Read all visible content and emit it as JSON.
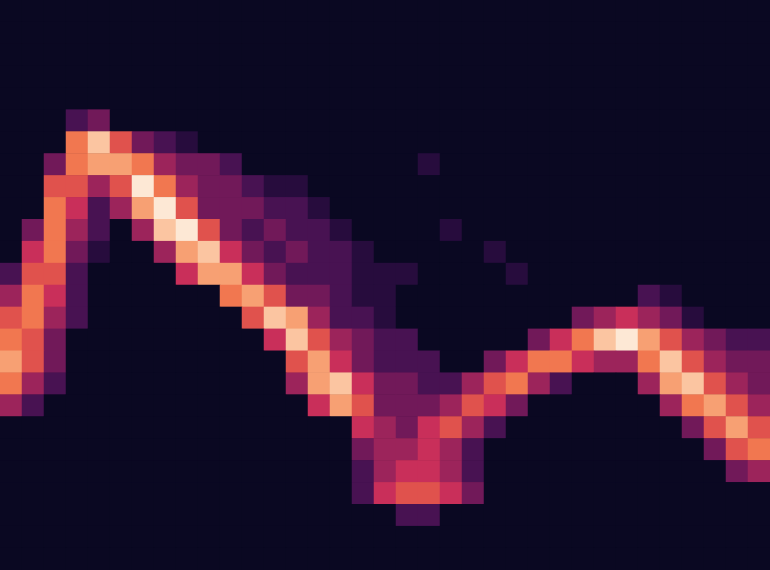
{
  "chart_data": {
    "type": "heatmap",
    "tick_labels": false,
    "zlim": [
      0,
      10
    ],
    "cells": [
      [
        0,
        0,
        0,
        0,
        0,
        0,
        0,
        0,
        0,
        0,
        0,
        0,
        0,
        0,
        0,
        0,
        0,
        0,
        0,
        0,
        0,
        0,
        0,
        0,
        0,
        0,
        0,
        0,
        0,
        0,
        0,
        0,
        0,
        0,
        0
      ],
      [
        0,
        0,
        0,
        0,
        0,
        0,
        0,
        0,
        0,
        0,
        0,
        0,
        0,
        0,
        0,
        0,
        0,
        0,
        0,
        0,
        0,
        0,
        0,
        0,
        0,
        0,
        0,
        0,
        0,
        0,
        0,
        0,
        0,
        0,
        0
      ],
      [
        0,
        0,
        0,
        0,
        0,
        0,
        0,
        0,
        0,
        0,
        0,
        0,
        0,
        0,
        0,
        0,
        0,
        0,
        0,
        0,
        0,
        0,
        0,
        0,
        0,
        0,
        0,
        0,
        0,
        0,
        0,
        0,
        0,
        0,
        0
      ],
      [
        0,
        0,
        0,
        0,
        0,
        0,
        0,
        0,
        0,
        0,
        0,
        0,
        0,
        0,
        0,
        0,
        0,
        0,
        0,
        0,
        0,
        0,
        0,
        0,
        0,
        0,
        0,
        0,
        0,
        0,
        0,
        0,
        0,
        0,
        0
      ],
      [
        0,
        0,
        0,
        0,
        0,
        0,
        0,
        0,
        0,
        0,
        0,
        0,
        0,
        0,
        0,
        0,
        0,
        0,
        0,
        0,
        0,
        0,
        0,
        0,
        0,
        0,
        0,
        0,
        0,
        0,
        0,
        0,
        0,
        0,
        0
      ],
      [
        0,
        0,
        0,
        2,
        3,
        0,
        0,
        0,
        0,
        0,
        0,
        0,
        0,
        0,
        0,
        0,
        0,
        0,
        0,
        0,
        0,
        0,
        0,
        0,
        0,
        0,
        0,
        0,
        0,
        0,
        0,
        0,
        0,
        0,
        0
      ],
      [
        0,
        0,
        0,
        7,
        9,
        6,
        3,
        2,
        1,
        0,
        0,
        0,
        0,
        0,
        0,
        0,
        0,
        0,
        0,
        0,
        0,
        0,
        0,
        0,
        0,
        0,
        0,
        0,
        0,
        0,
        0,
        0,
        0,
        0,
        0
      ],
      [
        0,
        0,
        3,
        7,
        8,
        8,
        7,
        4,
        3,
        3,
        2,
        0,
        0,
        0,
        0,
        0,
        0,
        0,
        0,
        1,
        0,
        0,
        0,
        0,
        0,
        0,
        0,
        0,
        0,
        0,
        0,
        0,
        0,
        0,
        0
      ],
      [
        0,
        0,
        6,
        6,
        4,
        6,
        10,
        7,
        4,
        3,
        3,
        2,
        1,
        1,
        0,
        0,
        0,
        0,
        0,
        0,
        0,
        0,
        0,
        0,
        0,
        0,
        0,
        0,
        0,
        0,
        0,
        0,
        0,
        0,
        0
      ],
      [
        0,
        0,
        7,
        5,
        2,
        4,
        8,
        10,
        6,
        3,
        3,
        3,
        2,
        2,
        1,
        0,
        0,
        0,
        0,
        0,
        0,
        0,
        0,
        0,
        0,
        0,
        0,
        0,
        0,
        0,
        0,
        0,
        0,
        0,
        0
      ],
      [
        0,
        3,
        7,
        4,
        2,
        0,
        4,
        9,
        10,
        6,
        3,
        2,
        3,
        2,
        2,
        1,
        0,
        0,
        0,
        0,
        1,
        0,
        0,
        0,
        0,
        0,
        0,
        0,
        0,
        0,
        0,
        0,
        0,
        0,
        0
      ],
      [
        0,
        5,
        7,
        3,
        1,
        0,
        0,
        4,
        8,
        9,
        5,
        3,
        2,
        3,
        2,
        2,
        1,
        0,
        0,
        0,
        0,
        0,
        1,
        0,
        0,
        0,
        0,
        0,
        0,
        0,
        0,
        0,
        0,
        0,
        0
      ],
      [
        2,
        6,
        6,
        2,
        0,
        0,
        0,
        0,
        5,
        8,
        8,
        5,
        3,
        2,
        2,
        2,
        1,
        1,
        1,
        0,
        0,
        0,
        0,
        1,
        0,
        0,
        0,
        0,
        0,
        0,
        0,
        0,
        0,
        0,
        0
      ],
      [
        4,
        7,
        5,
        2,
        0,
        0,
        0,
        0,
        0,
        0,
        7,
        8,
        6,
        3,
        3,
        2,
        1,
        1,
        0,
        0,
        0,
        0,
        0,
        0,
        0,
        0,
        0,
        0,
        0,
        2,
        1,
        0,
        0,
        0,
        0
      ],
      [
        6,
        7,
        4,
        2,
        0,
        0,
        0,
        0,
        0,
        0,
        0,
        6,
        9,
        8,
        4,
        2,
        2,
        1,
        0,
        0,
        0,
        0,
        0,
        0,
        0,
        0,
        3,
        4,
        5,
        4,
        3,
        1,
        0,
        0,
        0
      ],
      [
        7,
        6,
        3,
        0,
        0,
        0,
        0,
        0,
        0,
        0,
        0,
        0,
        5,
        9,
        6,
        4,
        3,
        2,
        2,
        0,
        0,
        0,
        0,
        0,
        3,
        5,
        7,
        9,
        10,
        8,
        6,
        4,
        3,
        2,
        2
      ],
      [
        8,
        6,
        3,
        0,
        0,
        0,
        0,
        0,
        0,
        0,
        0,
        0,
        0,
        6,
        8,
        5,
        3,
        2,
        2,
        2,
        0,
        0,
        3,
        5,
        7,
        7,
        5,
        4,
        4,
        7,
        9,
        6,
        4,
        3,
        3
      ],
      [
        7,
        4,
        2,
        0,
        0,
        0,
        0,
        0,
        0,
        0,
        0,
        0,
        0,
        4,
        8,
        9,
        5,
        3,
        3,
        2,
        2,
        4,
        6,
        7,
        4,
        2,
        0,
        0,
        0,
        4,
        8,
        9,
        6,
        4,
        3
      ],
      [
        4,
        2,
        0,
        0,
        0,
        0,
        0,
        0,
        0,
        0,
        0,
        0,
        0,
        0,
        5,
        8,
        6,
        3,
        3,
        3,
        4,
        6,
        5,
        3,
        0,
        0,
        0,
        0,
        0,
        0,
        4,
        7,
        8,
        6,
        4
      ],
      [
        0,
        0,
        0,
        0,
        0,
        0,
        0,
        0,
        0,
        0,
        0,
        0,
        0,
        0,
        0,
        0,
        5,
        4,
        3,
        5,
        6,
        4,
        2,
        0,
        0,
        0,
        0,
        0,
        0,
        0,
        0,
        3,
        6,
        8,
        6
      ],
      [
        0,
        0,
        0,
        0,
        0,
        0,
        0,
        0,
        0,
        0,
        0,
        0,
        0,
        0,
        0,
        0,
        3,
        4,
        4,
        5,
        4,
        2,
        0,
        0,
        0,
        0,
        0,
        0,
        0,
        0,
        0,
        0,
        3,
        6,
        7
      ],
      [
        0,
        0,
        0,
        0,
        0,
        0,
        0,
        0,
        0,
        0,
        0,
        0,
        0,
        0,
        0,
        0,
        2,
        4,
        5,
        5,
        4,
        2,
        0,
        0,
        0,
        0,
        0,
        0,
        0,
        0,
        0,
        0,
        0,
        3,
        4
      ],
      [
        0,
        0,
        0,
        0,
        0,
        0,
        0,
        0,
        0,
        0,
        0,
        0,
        0,
        0,
        0,
        0,
        2,
        5,
        6,
        6,
        5,
        3,
        0,
        0,
        0,
        0,
        0,
        0,
        0,
        0,
        0,
        0,
        0,
        0,
        0
      ],
      [
        0,
        0,
        0,
        0,
        0,
        0,
        0,
        0,
        0,
        0,
        0,
        0,
        0,
        0,
        0,
        0,
        0,
        0,
        2,
        2,
        0,
        0,
        0,
        0,
        0,
        0,
        0,
        0,
        0,
        0,
        0,
        0,
        0,
        0,
        0
      ],
      [
        0,
        0,
        0,
        0,
        0,
        0,
        0,
        0,
        0,
        0,
        0,
        0,
        0,
        0,
        0,
        0,
        0,
        0,
        0,
        0,
        0,
        0,
        0,
        0,
        0,
        0,
        0,
        0,
        0,
        0,
        0,
        0,
        0,
        0,
        0
      ],
      [
        0,
        0,
        0,
        0,
        0,
        0,
        0,
        0,
        0,
        0,
        0,
        0,
        0,
        0,
        0,
        0,
        0,
        0,
        0,
        0,
        0,
        0,
        0,
        0,
        0,
        0,
        0,
        0,
        0,
        0,
        0,
        0,
        0,
        0,
        0
      ]
    ]
  }
}
